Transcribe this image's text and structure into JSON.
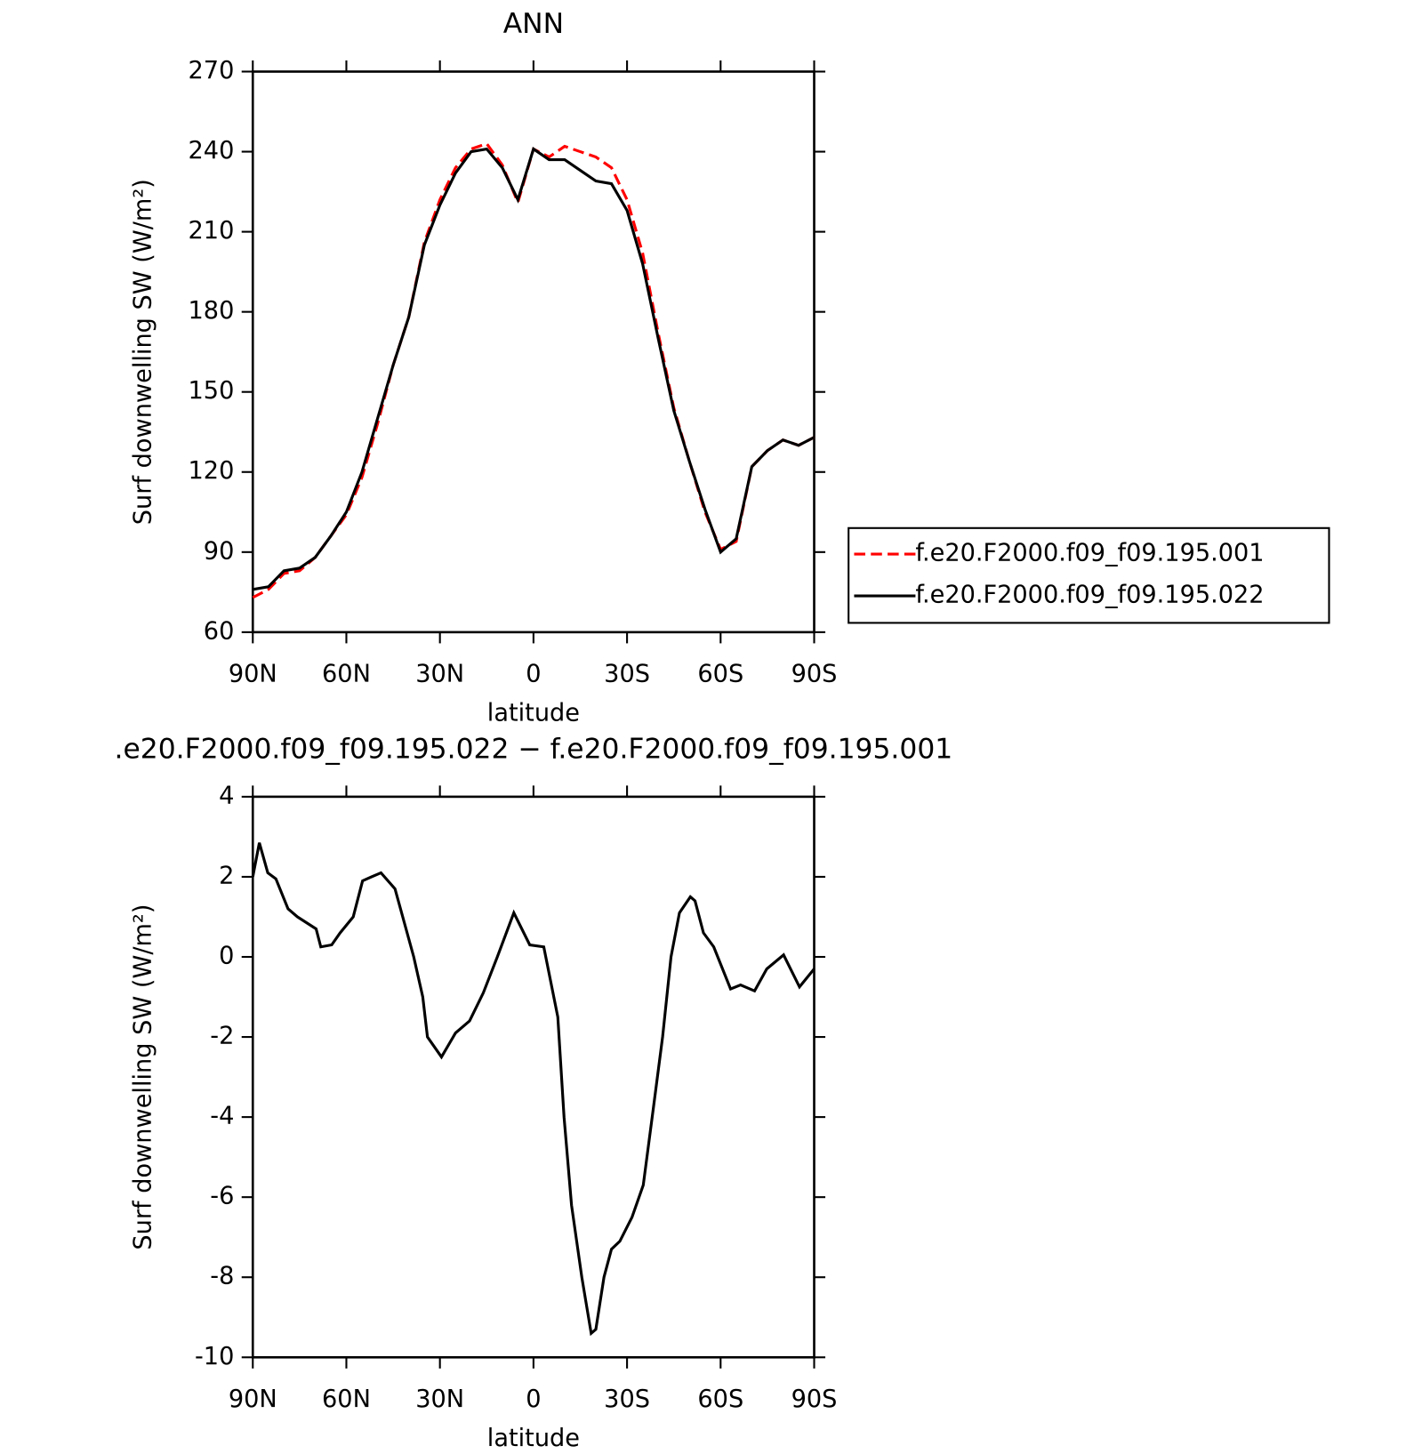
{
  "chart_data": [
    {
      "type": "line",
      "title": "ANN",
      "xlabel": "latitude",
      "ylabel": "Surf downwelling SW (W/m²)",
      "x": [
        90,
        85,
        80,
        75,
        70,
        65,
        60,
        55,
        50,
        45,
        40,
        35,
        30,
        25,
        20,
        15,
        10,
        5,
        0,
        -5,
        -10,
        -15,
        -20,
        -25,
        -30,
        -35,
        -40,
        -45,
        -50,
        -55,
        -60,
        -65,
        -70,
        -75,
        -80,
        -85,
        -90
      ],
      "series": [
        {
          "name": "f.e20.F2000.f09_f09.195.001",
          "color": "#ff0000",
          "linestyle": "dashed",
          "values": [
            73,
            76,
            82,
            83,
            88,
            96,
            104,
            118,
            138,
            160,
            178,
            206,
            222,
            234,
            241,
            243,
            235,
            221,
            241,
            238,
            242,
            240,
            238,
            234,
            222,
            202,
            172,
            144,
            124,
            105,
            91,
            94,
            122,
            128,
            132,
            130,
            133
          ]
        },
        {
          "name": "f.e20.F2000.f09_f09.195.022",
          "color": "#000000",
          "linestyle": "solid",
          "values": [
            76,
            77,
            83,
            84,
            88,
            96,
            105,
            120,
            140,
            160,
            178,
            205,
            220,
            232,
            240,
            241,
            234,
            222,
            241,
            237,
            237,
            233,
            229,
            228,
            218,
            198,
            170,
            143,
            124,
            106,
            90,
            95,
            122,
            128,
            132,
            130,
            133
          ]
        }
      ],
      "xlim": [
        90,
        -90
      ],
      "xticks": [
        {
          "value": 90,
          "label": "90N"
        },
        {
          "value": 60,
          "label": "60N"
        },
        {
          "value": 30,
          "label": "30N"
        },
        0,
        {
          "value": -30,
          "label": "30S"
        },
        {
          "value": -60,
          "label": "60S"
        },
        {
          "value": -90,
          "label": "90S"
        }
      ],
      "ylim": [
        60,
        270
      ],
      "yticks": [
        60,
        90,
        120,
        150,
        180,
        210,
        240,
        270
      ],
      "legend": "right"
    },
    {
      "type": "line",
      "title": ".e20.F2000.f09_f09.195.022 − f.e20.F2000.f09_f09.195.001",
      "xlabel": "latitude",
      "ylabel": "Surf downwelling SW (W/m²)",
      "x": [
        90,
        87.9,
        85.2,
        82.6,
        78.7,
        75.7,
        69.7,
        68.2,
        64.7,
        62.0,
        57.8,
        54.8,
        51.9,
        48.9,
        44.4,
        38.4,
        35.5,
        34.0,
        29.5,
        25.0,
        20.5,
        16.1,
        11.6,
        6.3,
        1.2,
        -3.3,
        -7.8,
        -9.8,
        -12.2,
        -15.5,
        -18.5,
        -20.0,
        -22.6,
        -25.0,
        -27.7,
        -31.6,
        -35.2,
        -38.4,
        -41.4,
        -44.1,
        -46.8,
        -50.3,
        -51.8,
        -54.5,
        -57.8,
        -63.2,
        -66.4,
        -70.9,
        -74.8,
        -80.2,
        -85.3,
        -90
      ],
      "series": [
        {
          "color": "#000000",
          "linestyle": "solid",
          "values": [
            2.0,
            2.85,
            2.1,
            1.95,
            1.2,
            1.0,
            0.7,
            0.25,
            0.3,
            0.6,
            1.0,
            1.9,
            2.0,
            2.1,
            1.7,
            0.0,
            -1.0,
            -2.0,
            -2.5,
            -1.9,
            -1.6,
            -0.9,
            0.0,
            1.1,
            0.3,
            0.25,
            -1.5,
            -4.0,
            -6.2,
            -8.0,
            -9.4,
            -9.3,
            -8.0,
            -7.3,
            -7.1,
            -6.5,
            -5.7,
            -3.8,
            -2.0,
            0.0,
            1.1,
            1.5,
            1.4,
            0.6,
            0.25,
            -0.8,
            -0.7,
            -0.85,
            -0.3,
            0.05,
            -0.75,
            -0.3
          ]
        }
      ],
      "xlim": [
        90,
        -90
      ],
      "xticks": [
        {
          "value": 90,
          "label": "90N"
        },
        {
          "value": 60,
          "label": "60N"
        },
        {
          "value": 30,
          "label": "30N"
        },
        0,
        {
          "value": -30,
          "label": "30S"
        },
        {
          "value": -60,
          "label": "60S"
        },
        {
          "value": -90,
          "label": "90S"
        }
      ],
      "ylim": [
        -10,
        4
      ],
      "yticks": [
        -10,
        -8,
        -6,
        -4,
        -2,
        0,
        2,
        4
      ]
    }
  ]
}
